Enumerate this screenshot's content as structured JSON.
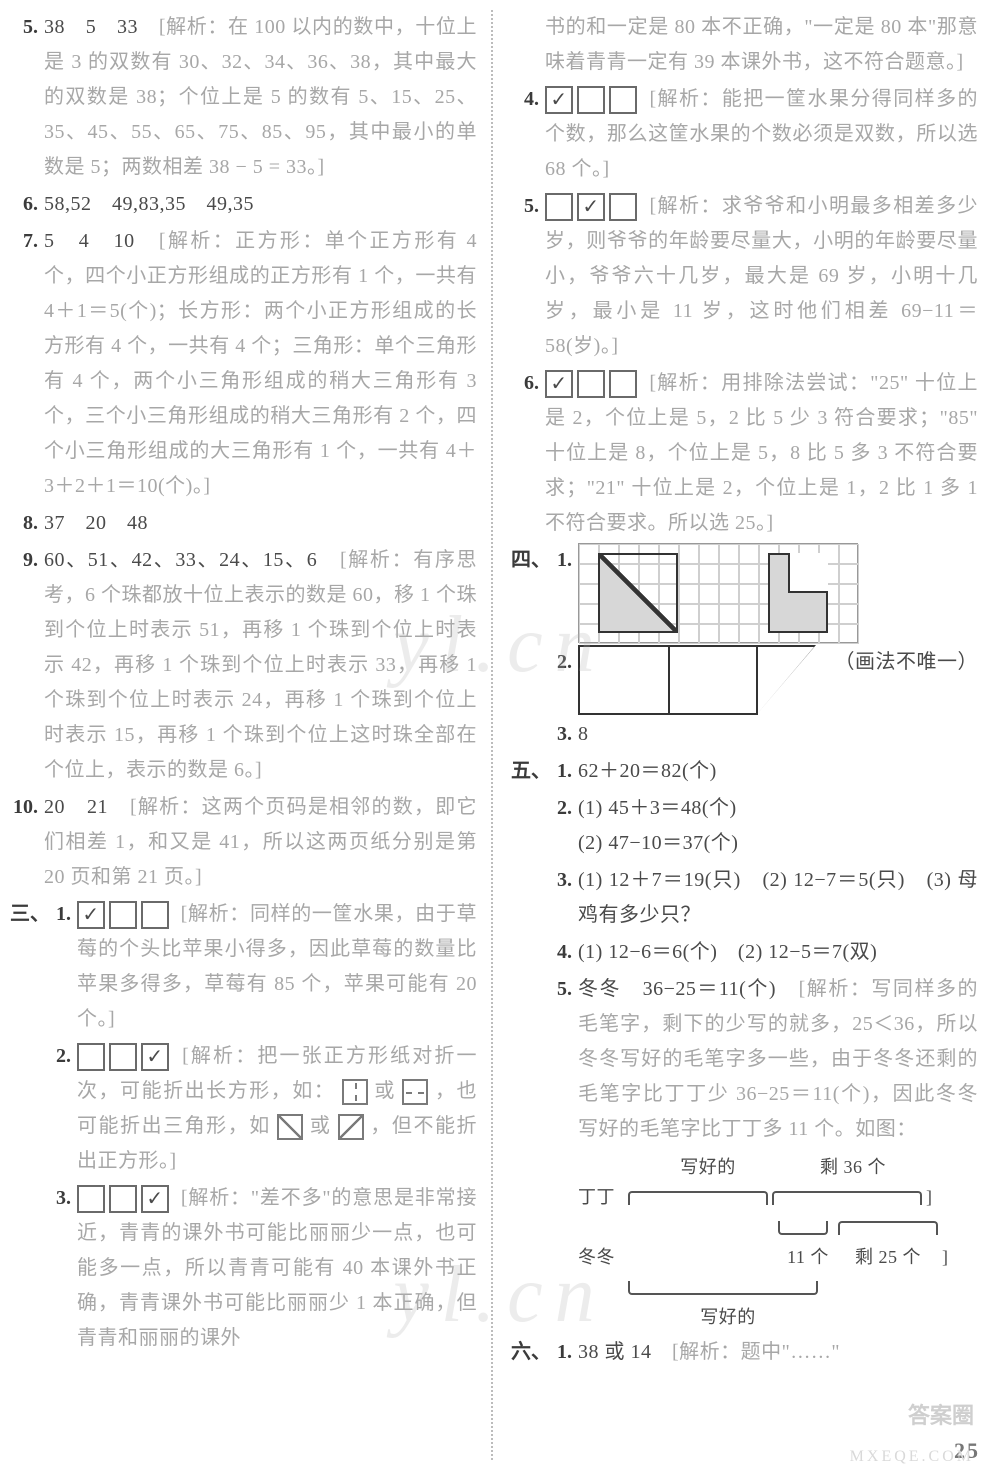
{
  "watermarks": {
    "wm1": "yl.cn",
    "wm2": "yl.cn"
  },
  "page_number": "25",
  "answer_logo": "答案圈",
  "mx": "MXEQE.COM",
  "left": {
    "i5": {
      "num": "5.",
      "lead": "38　5　33　",
      "analysis_label": "[解析：",
      "analysis": "在 100 以内的数中，十位上是 3 的双数有 30、32、34、36、38，其中最大的双数是 38；个位上是 5 的数有 5、15、25、35、45、55、65、75、85、95，其中最小的单数是 5；两数相差 38 − 5 = 33。]"
    },
    "i6": {
      "num": "6.",
      "text": "58,52　49,83,35　49,35"
    },
    "i7": {
      "num": "7.",
      "lead": "5　4　10　",
      "analysis_label": "[解析：",
      "analysis": "正方形：单个正方形有 4 个，四个小正方形组成的正方形有 1 个，一共有 4＋1＝5(个)；长方形：两个小正方形组成的长方形有 4 个，一共有 4 个；三角形：单个三角形有 4 个，两个小三角形组成的稍大三角形有 3 个，三个小三角形组成的稍大三角形有 2 个，四个小三角形组成的大三角形有 1 个，一共有 4＋3＋2＋1＝10(个)。]"
    },
    "i8": {
      "num": "8.",
      "text": "37　20　48"
    },
    "i9": {
      "num": "9.",
      "lead": "60、51、42、33、24、15、6　",
      "analysis_label": "[解析：",
      "analysis": "有序思考，6 个珠都放十位上表示的数是 60，移 1 个珠到个位上时表示 51，再移 1 个珠到个位上时表示 42，再移 1 个珠到个位上时表示 33，再移 1 个珠到个位上时表示 24，再移 1 个珠到个位上时表示 15，再移 1 个珠到个位上这时珠全部在个位上，表示的数是 6。]"
    },
    "i10": {
      "num": "10.",
      "lead": "20　21　",
      "analysis_label": "[解析：",
      "analysis": "这两个页码是相邻的数，即它们相差 1，和又是 41，所以这两页纸分别是第 20 页和第 21 页。]"
    },
    "sec3": "三、",
    "s3_1": {
      "num": "1.",
      "checks": [
        "✓",
        "",
        ""
      ],
      "analysis_label": "[解析：",
      "analysis": "同样的一筐水果，由于草莓的个头比苹果小得多，因此草莓的数量比苹果多得多，草莓有 85 个，苹果可能有 20 个。]"
    },
    "s3_2": {
      "num": "2.",
      "checks": [
        "",
        "",
        "✓"
      ],
      "analysis_label": "[解析：",
      "analysis_a": "把一张正方形纸对折一次，可能折出长方形，如：",
      "analysis_b": "或",
      "analysis_c": "，也可能折出三角形，如",
      "analysis_d": "或",
      "analysis_e": "，但不能折出正方形。]"
    },
    "s3_3": {
      "num": "3.",
      "checks": [
        "",
        "",
        "✓"
      ],
      "analysis_label": "[解析：",
      "analysis": "\"差不多\"的意思是非常接近，青青的课外书可能比丽丽少一点，也可能多一点，所以青青可能有 40 本课外书正确，青青课外书可能比丽丽少 1 本正确，但青青和丽丽的课外"
    }
  },
  "right": {
    "cont": "书的和一定是 80 本不正确，\"一定是 80 本\"那意味着青青一定有 39 本课外书，这不符合题意。]",
    "i4": {
      "num": "4.",
      "checks": [
        "✓",
        "",
        ""
      ],
      "analysis_label": "[解析：",
      "analysis": "能把一筐水果分得同样多的个数，那么这筐水果的个数必须是双数，所以选 68 个。]"
    },
    "i5": {
      "num": "5.",
      "checks": [
        "",
        "✓",
        ""
      ],
      "analysis_label": "[解析：",
      "analysis": "求爷爷和小明最多相差多少岁，则爷爷的年龄要尽量大，小明的年龄要尽量小，爷爷六十几岁，最大是 69 岁，小明十几岁，最小是 11 岁，这时他们相差 69−11＝58(岁)。]"
    },
    "i6": {
      "num": "6.",
      "checks": [
        "✓",
        "",
        ""
      ],
      "analysis_label": "[解析：",
      "analysis": "用排除法尝试：\"25\" 十位上是 2，个位上是 5，2 比 5 少 3 符合要求；\"85\" 十位上是 8，个位上是 5，8 比 5 多 3 不符合要求；\"21\" 十位上是 2，个位上是 1，2 比 1 多 1 不符合要求。所以选 25。]"
    },
    "sec4": "四、",
    "s4_1": {
      "num": "1."
    },
    "s4_note": "（画法不唯一）",
    "s4_2": {
      "num": "2."
    },
    "s4_3": {
      "num": "3.",
      "text": "8"
    },
    "sec5": "五、",
    "s5_1": {
      "num": "1.",
      "text": "62＋20＝82(个)"
    },
    "s5_2": {
      "num": "2.",
      "a": "(1) 45＋3＝48(个)",
      "b": "(2) 47−10＝37(个)"
    },
    "s5_3": {
      "num": "3.",
      "a": "(1) 12＋7＝19(只)　(2) 12−7＝5(只)　(3) 母鸡有多少只？"
    },
    "s5_4": {
      "num": "4.",
      "text": "(1) 12−6＝6(个)　(2) 12−5＝7(双)"
    },
    "s5_5": {
      "num": "5.",
      "lead": "冬冬　36−25＝11(个)　",
      "analysis_label": "[解析：",
      "analysis": "写同样多的毛笔字，剩下的少写的就多，25＜36，所以冬冬写好的毛笔字多一些，由于冬冬还剩的毛笔字比丁丁少 36−25＝11(个)，因此冬冬写好的毛笔字比丁丁多 11 个。如图：",
      "diag": {
        "top_left": "写好的",
        "top_right": "剩 36 个",
        "row1": "丁丁",
        "mid": "11 个",
        "mid_right": "剩 25 个",
        "row2": "冬冬",
        "bottom": "写好的"
      }
    },
    "sec6": "六、",
    "s6_1": {
      "num": "1.",
      "lead": "38 或 14　",
      "analysis_label": "[解析：",
      "analysis": "题中\"……\""
    }
  }
}
